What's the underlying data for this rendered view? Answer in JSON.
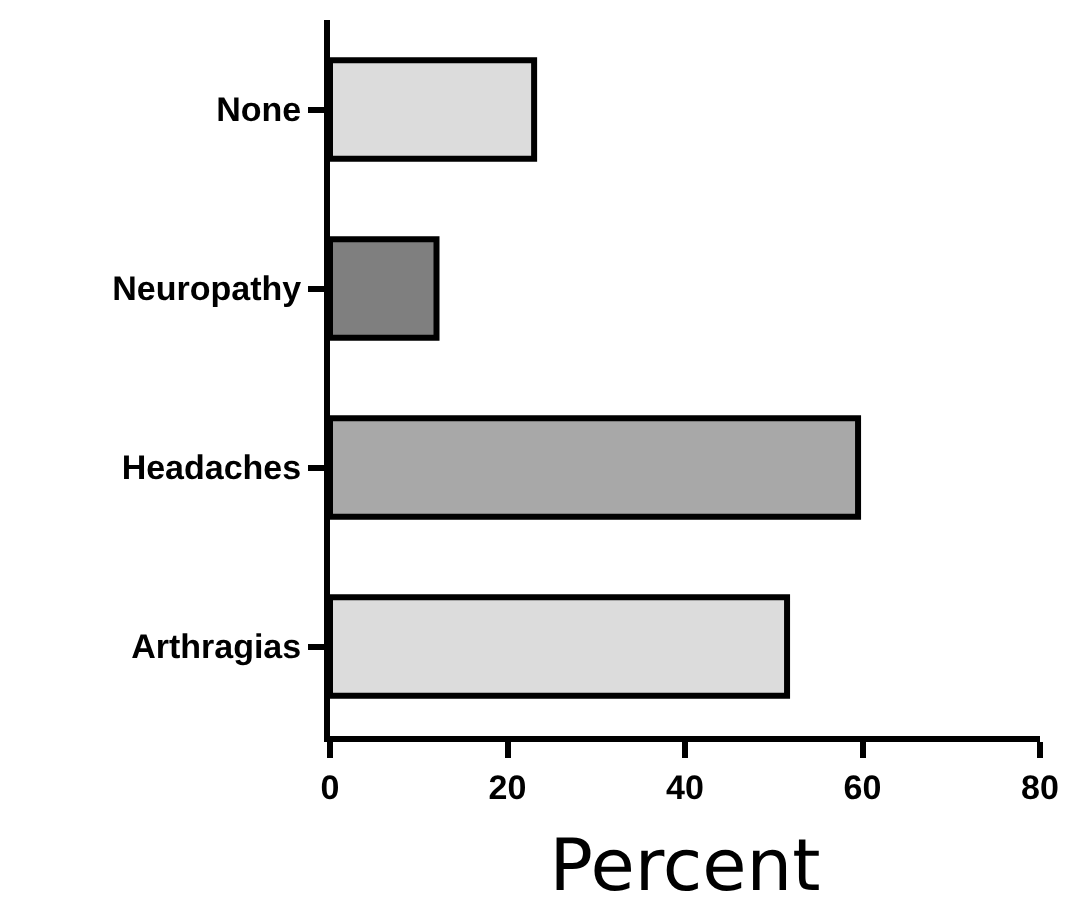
{
  "chart_data": {
    "type": "bar",
    "orientation": "horizontal",
    "categories": [
      "None",
      "Neuropathy",
      "Headaches",
      "Arthragias"
    ],
    "values": [
      23,
      12,
      59.5,
      51.5
    ],
    "colors": [
      "#dcdcdc",
      "#7f7f7f",
      "#a8a8a8",
      "#dcdcdc"
    ],
    "xlabel": "Percent",
    "xlim": [
      0,
      80
    ],
    "xticks": [
      0,
      20,
      40,
      60,
      80
    ]
  }
}
